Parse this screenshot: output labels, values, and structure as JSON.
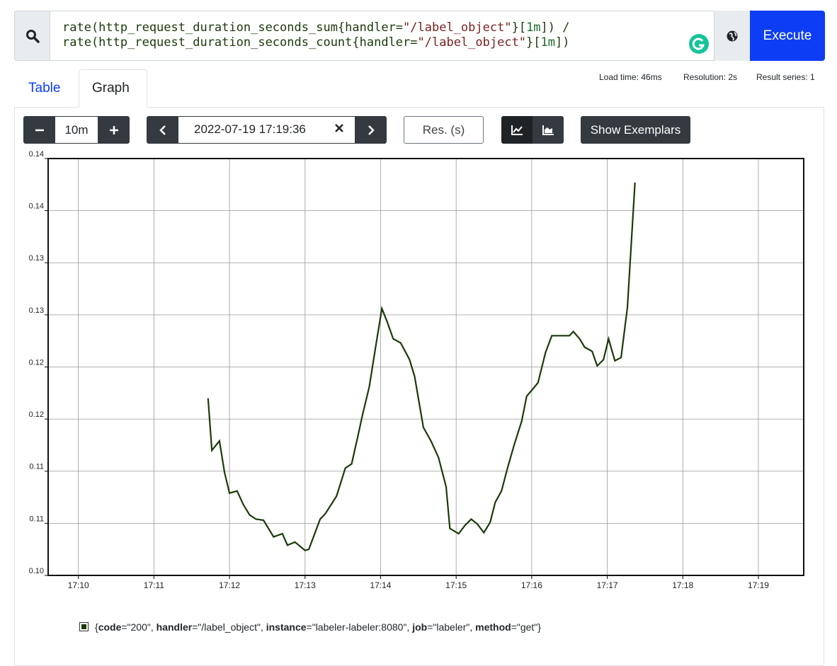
{
  "query": {
    "lines": [
      "rate(http_request_duration_seconds_sum{handler=\"/label_object\"}[1m]) /",
      "rate(http_request_duration_seconds_count{handler=\"/label_object\"}[1m])"
    ]
  },
  "execute_button": "Execute",
  "tabs": [
    "Table",
    "Graph"
  ],
  "stats": [
    "Load time: 46ms",
    "Resolution: 2s",
    "Result series: 1"
  ],
  "controls": {
    "range": "10m",
    "end_time": "2022-07-19 17:19:36",
    "resolution_placeholder": "Res. (s)",
    "exemplars_button": "Show Exemplars"
  },
  "chart_data": {
    "type": "line",
    "x": [
      "17:11:43",
      "17:11:46",
      "17:11:52",
      "17:11:56",
      "17:12:00",
      "17:12:06",
      "17:12:11",
      "17:12:16",
      "17:12:21",
      "17:12:27",
      "17:12:35",
      "17:12:42",
      "17:12:46",
      "17:12:52",
      "17:13:00",
      "17:13:03",
      "17:13:12",
      "17:13:16",
      "17:13:25",
      "17:13:32",
      "17:13:37",
      "17:13:42",
      "17:13:46",
      "17:13:51",
      "17:13:56",
      "17:14:01",
      "17:14:05",
      "17:14:10",
      "17:14:16",
      "17:14:23",
      "17:14:27",
      "17:14:34",
      "17:14:40",
      "17:14:46",
      "17:14:52",
      "17:14:55",
      "17:15:02",
      "17:15:07",
      "17:15:12",
      "17:15:17",
      "17:15:22",
      "17:15:27",
      "17:15:31",
      "17:15:36",
      "17:15:41",
      "17:15:46",
      "17:15:52",
      "17:15:56",
      "17:16:01",
      "17:16:05",
      "17:16:11",
      "17:16:16",
      "17:16:22",
      "17:16:30",
      "17:16:33",
      "17:16:38",
      "17:16:42",
      "17:16:48",
      "17:16:52",
      "17:16:57",
      "17:17:01",
      "17:17:06",
      "17:17:11",
      "17:17:16",
      "17:17:22"
    ],
    "series": [
      {
        "name": "{code=\"200\", handler=\"/label_object\", instance=\"labeler-labeler:8080\", job=\"labeler\", method=\"get\"}",
        "color": "#1a3a0a",
        "values": [
          0.117,
          0.112,
          0.1129,
          0.1099,
          0.1079,
          0.1081,
          0.1068,
          0.1058,
          0.1054,
          0.1053,
          0.1037,
          0.104,
          0.1029,
          0.1032,
          0.1024,
          0.1025,
          0.1054,
          0.1059,
          0.1076,
          0.1103,
          0.1107,
          0.1134,
          0.1156,
          0.1181,
          0.1219,
          0.1256,
          0.1244,
          0.1227,
          0.1223,
          0.1207,
          0.1191,
          0.1142,
          0.1129,
          0.1113,
          0.1085,
          0.1045,
          0.104,
          0.1048,
          0.1054,
          0.1049,
          0.1041,
          0.1051,
          0.107,
          0.1081,
          0.1104,
          0.1125,
          0.1148,
          0.1172,
          0.1179,
          0.1185,
          0.1214,
          0.123,
          0.123,
          0.123,
          0.1234,
          0.1227,
          0.1219,
          0.1215,
          0.1201,
          0.1207,
          0.1227,
          0.1206,
          0.1209,
          0.1257,
          0.1377
        ]
      }
    ],
    "xlim": [
      "17:09:36",
      "17:19:36"
    ],
    "xticks": [
      "17:10",
      "17:11",
      "17:12",
      "17:13",
      "17:14",
      "17:15",
      "17:16",
      "17:17",
      "17:18",
      "17:19"
    ],
    "ylim": [
      0.1,
      0.14
    ],
    "yticks": [
      {
        "value": 0.1,
        "label": "0.10"
      },
      {
        "value": 0.105,
        "label": "0.11"
      },
      0.11,
      {
        "value": 0.115,
        "label": "0.12"
      },
      0.12,
      {
        "value": 0.125,
        "label": "0.13"
      },
      0.13,
      {
        "value": 0.135,
        "label": "0.14"
      },
      0.14
    ],
    "grid": true
  }
}
